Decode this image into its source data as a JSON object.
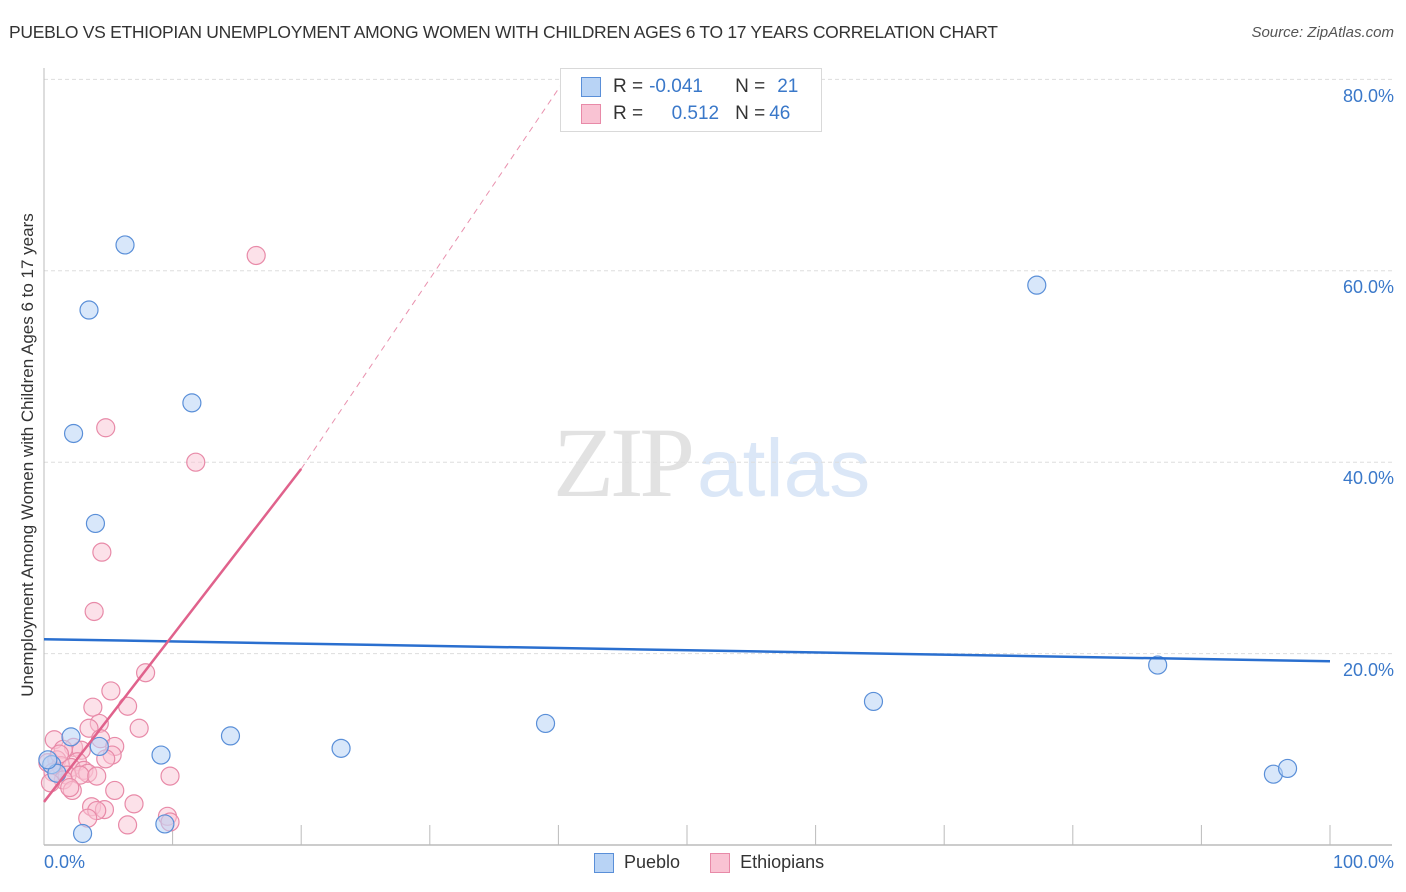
{
  "title": "PUEBLO VS ETHIOPIAN UNEMPLOYMENT AMONG WOMEN WITH CHILDREN AGES 6 TO 17 YEARS CORRELATION CHART",
  "source": "Source: ZipAtlas.com",
  "watermark": {
    "zip": "ZIP",
    "atlas": "atlas"
  },
  "colors": {
    "pueblo_fill": "#b8d3f5",
    "pueblo_stroke": "#5a8fd8",
    "pueblo_line": "#2a6fcf",
    "ethiopians_fill": "#f9c3d3",
    "ethiopians_stroke": "#e88aa8",
    "ethiopians_line": "#e0628c",
    "tick_label": "#3a78c9",
    "grid": "#dddddd"
  },
  "stats_legend": {
    "rows": [
      {
        "series": "Pueblo",
        "r_label": "R =",
        "r_value": "-0.041",
        "n_label": "N =",
        "n_value": "21"
      },
      {
        "series": "Ethiopians",
        "r_label": "R =",
        "r_value": "0.512",
        "n_label": "N =",
        "n_value": "46"
      }
    ]
  },
  "bottom_legend": [
    {
      "label": "Pueblo"
    },
    {
      "label": "Ethiopians"
    }
  ],
  "chart_data": {
    "type": "scatter",
    "title": "PUEBLO VS ETHIOPIAN UNEMPLOYMENT AMONG WOMEN WITH CHILDREN AGES 6 TO 17 YEARS CORRELATION CHART",
    "xlabel": "",
    "ylabel": "Unemployment Among Women with Children Ages 6 to 17 years",
    "xlim": [
      0,
      100
    ],
    "ylim": [
      0,
      82
    ],
    "x_tick_labels": [
      "0.0%",
      "100.0%"
    ],
    "y_tick_labels": [
      "80.0%",
      "60.0%",
      "40.0%",
      "20.0%"
    ],
    "y_ticks": [
      80,
      60,
      40,
      20
    ],
    "grid": true,
    "legend_position": "bottom-center",
    "series": [
      {
        "name": "Pueblo",
        "r": -0.041,
        "n": 21,
        "trend": {
          "x0": 0,
          "y0": 21.5,
          "x1": 100,
          "y1": 19.2
        },
        "points": [
          [
            6.3,
            62.7
          ],
          [
            3.5,
            55.9
          ],
          [
            11.5,
            46.2
          ],
          [
            2.3,
            43.0
          ],
          [
            4.0,
            33.6
          ],
          [
            77.2,
            58.5
          ],
          [
            86.6,
            18.8
          ],
          [
            64.5,
            15.0
          ],
          [
            39.0,
            12.7
          ],
          [
            14.5,
            11.4
          ],
          [
            23.1,
            10.1
          ],
          [
            9.1,
            9.4
          ],
          [
            2.1,
            11.3
          ],
          [
            4.3,
            10.3
          ],
          [
            95.6,
            7.4
          ],
          [
            96.7,
            8.0
          ],
          [
            9.4,
            2.2
          ],
          [
            3.0,
            1.2
          ],
          [
            0.6,
            8.4
          ],
          [
            1.0,
            7.5
          ],
          [
            0.3,
            8.9
          ]
        ]
      },
      {
        "name": "Ethiopians",
        "r": 0.512,
        "n": 46,
        "trend": {
          "x0": 0,
          "y0": 4.5,
          "x1": 20,
          "y1": 39.3,
          "dashed_to": {
            "x": 40.5,
            "y": 80
          }
        },
        "points": [
          [
            16.5,
            61.6
          ],
          [
            4.8,
            43.6
          ],
          [
            11.8,
            40.0
          ],
          [
            4.5,
            30.6
          ],
          [
            3.9,
            24.4
          ],
          [
            7.9,
            18.0
          ],
          [
            5.2,
            16.1
          ],
          [
            6.5,
            14.5
          ],
          [
            3.8,
            14.4
          ],
          [
            4.3,
            12.7
          ],
          [
            3.5,
            12.2
          ],
          [
            7.4,
            12.2
          ],
          [
            4.4,
            11.1
          ],
          [
            0.8,
            11.0
          ],
          [
            5.5,
            10.3
          ],
          [
            2.3,
            10.2
          ],
          [
            1.5,
            10.0
          ],
          [
            2.9,
            9.9
          ],
          [
            5.3,
            9.4
          ],
          [
            4.8,
            9.0
          ],
          [
            1.0,
            8.9
          ],
          [
            2.6,
            8.7
          ],
          [
            0.3,
            8.6
          ],
          [
            1.3,
            8.3
          ],
          [
            2.1,
            8.1
          ],
          [
            3.1,
            7.8
          ],
          [
            0.7,
            7.6
          ],
          [
            3.4,
            7.5
          ],
          [
            1.8,
            7.3
          ],
          [
            2.8,
            7.3
          ],
          [
            4.1,
            7.2
          ],
          [
            9.8,
            7.2
          ],
          [
            1.5,
            6.8
          ],
          [
            0.5,
            6.5
          ],
          [
            2.2,
            5.7
          ],
          [
            5.5,
            5.7
          ],
          [
            7.0,
            4.3
          ],
          [
            3.7,
            4.0
          ],
          [
            4.7,
            3.7
          ],
          [
            4.1,
            3.6
          ],
          [
            9.6,
            3.0
          ],
          [
            3.4,
            2.8
          ],
          [
            9.8,
            2.4
          ],
          [
            6.5,
            2.1
          ],
          [
            2.0,
            6.0
          ],
          [
            1.2,
            9.5
          ]
        ]
      }
    ]
  }
}
